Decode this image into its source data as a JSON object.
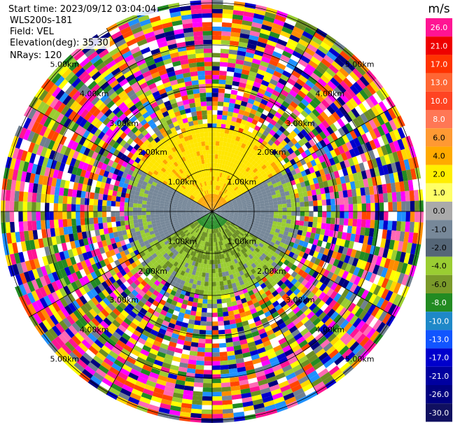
{
  "info": {
    "start_time": "Start time: 2023/09/12 03:04:04",
    "instrument": "WLS200s-181",
    "field": "Field: VEL",
    "elevation": "Elevation(deg): 35.30",
    "nrays": "NRays: 120"
  },
  "colorbar": {
    "unit": "m/s",
    "labels": [
      "26.0",
      "21.0",
      "17.0",
      "13.0",
      "10.0",
      "8.0",
      "6.0",
      "4.0",
      "2.0",
      "1.0",
      "0.0",
      "-1.0",
      "-2.0",
      "-4.0",
      "-6.0",
      "-8.0",
      "-10.0",
      "-13.0",
      "-17.0",
      "-21.0",
      "-26.0",
      "-30.0"
    ],
    "colors": [
      "#ff1493",
      "#ee0000",
      "#ff3300",
      "#ff6633",
      "#ff4422",
      "#ff7755",
      "#ff9933",
      "#ffaa00",
      "#ffee00",
      "#ffff66",
      "#aaaaaa",
      "#778899",
      "#556677",
      "#9acd32",
      "#7a9a2a",
      "#228b22",
      "#1e88c8",
      "#1155ff",
      "#0000cc",
      "#0000a0",
      "#000080",
      "#101060"
    ]
  },
  "range_rings": {
    "labels": [
      "1.00km",
      "2.00km",
      "3.00km",
      "4.00km",
      "5.00km"
    ]
  },
  "palette": {
    "noise": [
      "#ff1493",
      "#ff69b4",
      "#0000cd",
      "#1e90ff",
      "#ffd700",
      "#ffff00",
      "#ff4500",
      "#9acd32",
      "#6b8e23",
      "#708090",
      "#ffffff",
      "#ff00ff",
      "#000080",
      "#ff8c00",
      "#228b22"
    ],
    "near_yellow": "#ffe600",
    "near_lightgreen": "#9acd32",
    "near_darkgreen": "#6b8e23",
    "near_gray": "#778899",
    "near_orange": "#ffa500",
    "core_green": "#228b22"
  }
}
